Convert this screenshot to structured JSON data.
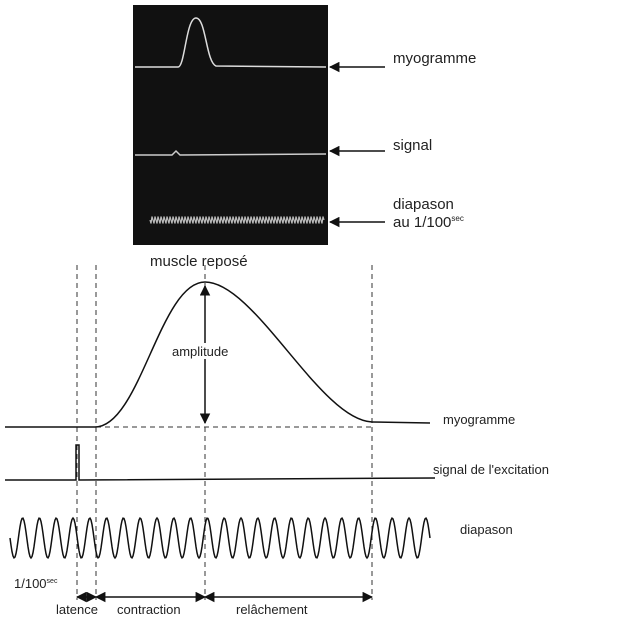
{
  "top_panel": {
    "trace_labels": [
      "myogramme",
      "signal",
      "diapason"
    ],
    "diapason_unit": "au 1/100",
    "unit_sup": "sec",
    "caption": "muscle reposé"
  },
  "diagram": {
    "amplitude_label": "amplitude",
    "trace_labels": [
      "myogramme",
      "signal de l'excitation",
      "diapason"
    ],
    "time_unit": "1/100",
    "time_unit_sup": "sec",
    "phases": [
      "latence",
      "contraction",
      "relâchement"
    ]
  }
}
